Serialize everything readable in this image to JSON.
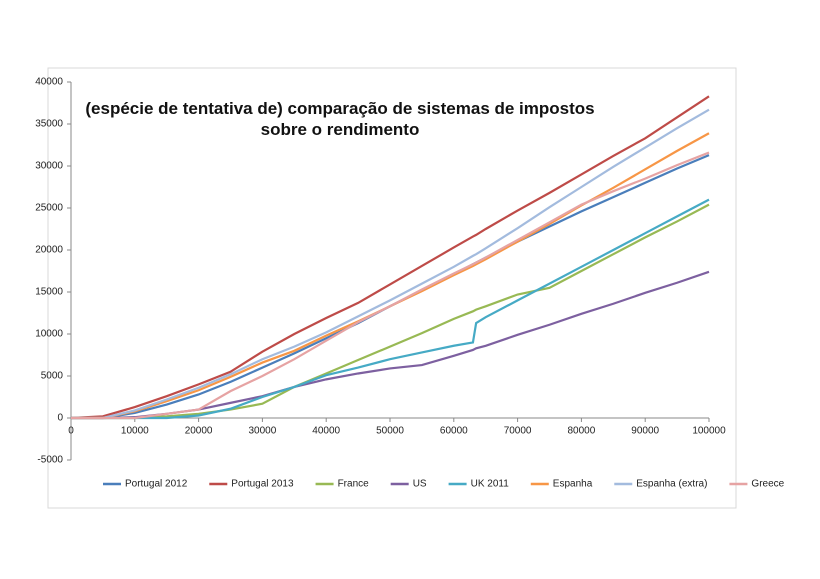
{
  "chart_data": {
    "type": "line",
    "title": "(espécie de tentativa de) comparação de sistemas de impostos sobre o rendimento",
    "x": [
      0,
      5000,
      10000,
      15000,
      20000,
      25000,
      30000,
      35000,
      40000,
      45000,
      50000,
      55000,
      60000,
      63000,
      63500,
      65000,
      70000,
      75000,
      80000,
      85000,
      90000,
      95000,
      100000
    ],
    "xlim": [
      0,
      100000
    ],
    "xticks": [
      0,
      10000,
      20000,
      30000,
      40000,
      50000,
      60000,
      70000,
      80000,
      90000,
      100000
    ],
    "ylim": [
      -5000,
      40000
    ],
    "yticks": [
      -5000,
      0,
      5000,
      10000,
      15000,
      20000,
      25000,
      30000,
      35000,
      40000
    ],
    "grid": false,
    "legend": "bottom",
    "series": [
      {
        "name": "Portugal 2012",
        "color": "#4a7ebb",
        "values": [
          0,
          0,
          600,
          1600,
          2800,
          4300,
          6000,
          7700,
          9500,
          11300,
          13300,
          15200,
          17100,
          18300,
          18500,
          19100,
          21000,
          22800,
          24600,
          26300,
          28000,
          29700,
          31300
        ]
      },
      {
        "name": "Portugal 2013",
        "color": "#be4b48",
        "values": [
          0,
          200,
          1300,
          2600,
          4000,
          5500,
          7900,
          10000,
          11900,
          13700,
          15900,
          18100,
          20300,
          21600,
          21800,
          22500,
          24700,
          26800,
          29000,
          31200,
          33300,
          35800,
          38300
        ]
      },
      {
        "name": "France",
        "color": "#98b954",
        "values": [
          0,
          0,
          0,
          200,
          500,
          1000,
          1700,
          3700,
          5300,
          6900,
          8500,
          10100,
          11800,
          12700,
          12900,
          13300,
          14700,
          15500,
          17500,
          19500,
          21500,
          23400,
          25400
        ]
      },
      {
        "name": "US",
        "color": "#7d60a0",
        "values": [
          0,
          0,
          100,
          500,
          1000,
          1800,
          2600,
          3700,
          4600,
          5300,
          5900,
          6300,
          7400,
          8100,
          8300,
          8600,
          9900,
          11100,
          12400,
          13600,
          14900,
          16100,
          17400
        ]
      },
      {
        "name": "UK 2011",
        "color": "#46aac5",
        "values": [
          0,
          0,
          0,
          0,
          300,
          1100,
          2500,
          3700,
          5100,
          6000,
          7000,
          7800,
          8600,
          9000,
          11300,
          12000,
          14000,
          16000,
          18000,
          20000,
          22000,
          24000,
          26000
        ]
      },
      {
        "name": "Espanha",
        "color": "#f79646",
        "values": [
          0,
          0,
          800,
          2000,
          3300,
          4900,
          6600,
          8000,
          9800,
          11500,
          13300,
          15100,
          17000,
          18100,
          18300,
          18900,
          21000,
          23100,
          25300,
          27400,
          29600,
          31800,
          33900
        ]
      },
      {
        "name": "Espanha (extra)",
        "color": "#a3bbde",
        "values": [
          0,
          0,
          900,
          2200,
          3600,
          5200,
          7000,
          8500,
          10200,
          12100,
          14000,
          16000,
          18000,
          19300,
          19500,
          20200,
          22600,
          25100,
          27500,
          29900,
          32200,
          34500,
          36700
        ]
      },
      {
        "name": "Greece",
        "color": "#e6a3a3",
        "values": [
          0,
          0,
          0,
          500,
          1000,
          3200,
          5000,
          7000,
          9200,
          11400,
          13300,
          15300,
          17200,
          18300,
          18500,
          19100,
          21200,
          23300,
          25400,
          27000,
          28500,
          30100,
          31600
        ]
      }
    ]
  }
}
